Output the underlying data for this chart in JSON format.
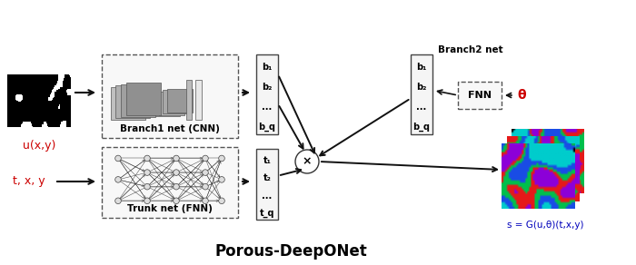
{
  "title": "Porous-DeepONet",
  "title_fontsize": 12,
  "background_color": "#ffffff",
  "label_u": "u(x,y)",
  "label_txy": "t, x, y",
  "label_branch1": "Branch1 net (CNN)",
  "label_trunk": "Trunk net (FNN)",
  "label_branch2": "Branch2 net",
  "label_fnn": "FNN",
  "label_theta": "θ",
  "label_s": "s = G(u,θ)(t,x,y)",
  "b_labels": [
    "b₁",
    "b₂",
    "...",
    "b_q"
  ],
  "t_labels": [
    "t₁",
    "t₂",
    "...",
    "t_q"
  ],
  "times_symbol": "×",
  "arrow_color": "#111111",
  "red_color": "#cc0000",
  "blue_color": "#0000bb",
  "cnn_layer_colors": [
    "#bbbbbb",
    "#999999",
    "#888888",
    "#aaaaaa",
    "#cccccc",
    "#e0e0e0"
  ]
}
